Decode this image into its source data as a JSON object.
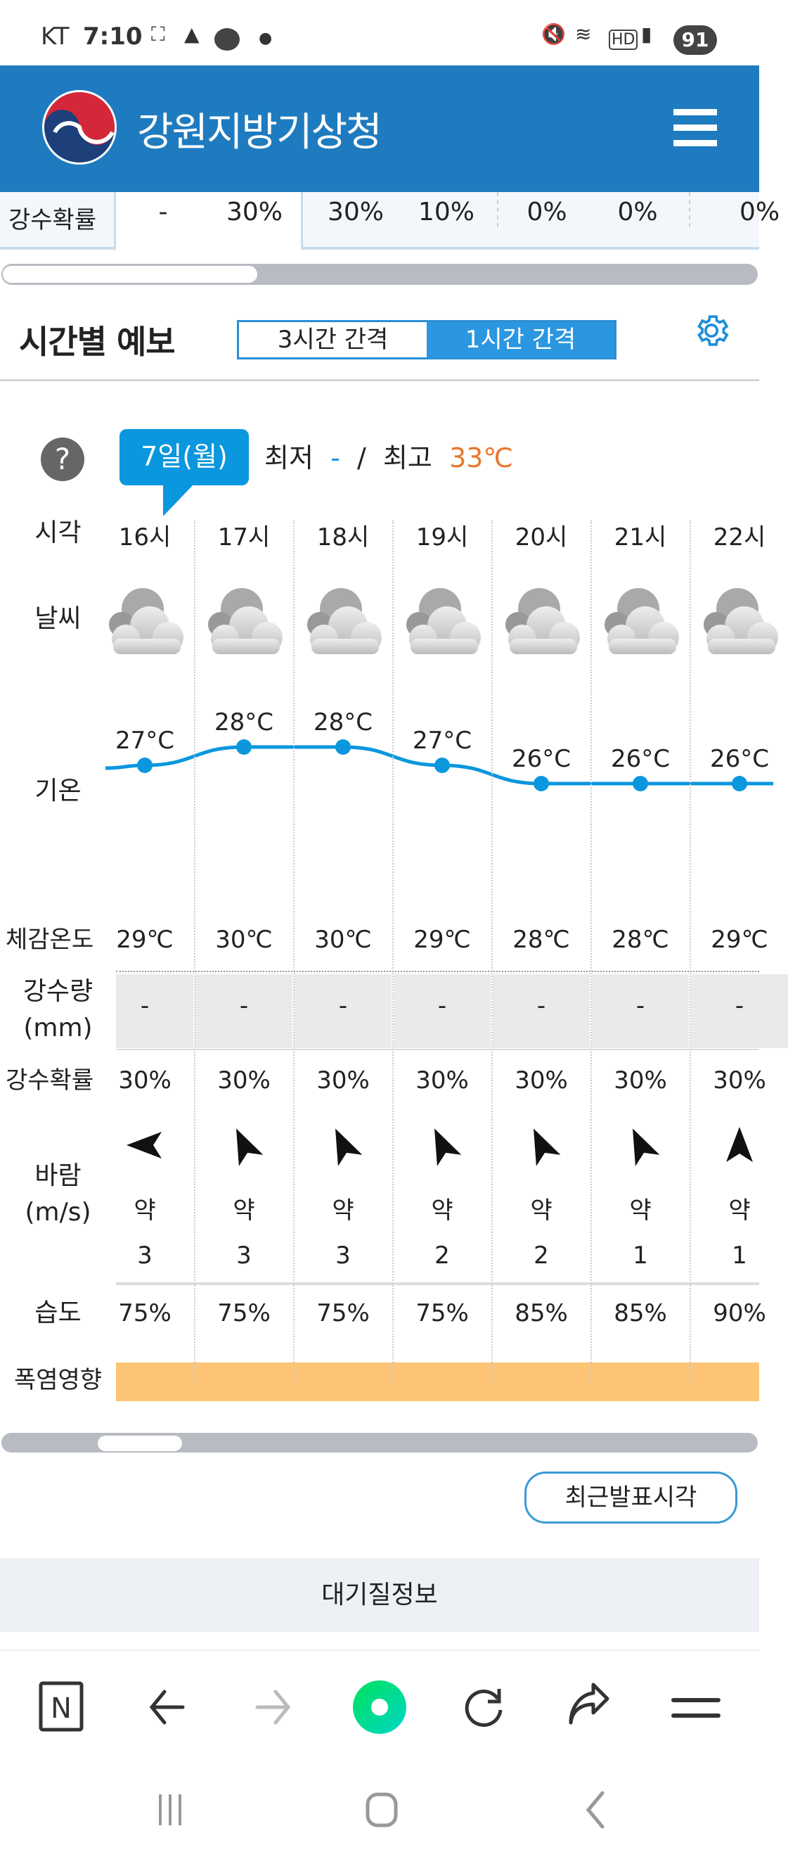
{
  "status_bar": {
    "carrier": "KT",
    "time": "7:10",
    "battery": "91"
  },
  "header": {
    "title": "강원지방기상청",
    "menu_icon": "hamburger-icon"
  },
  "top_table": {
    "label": "강수확률",
    "values": [
      "-",
      "30%",
      "30%",
      "10%",
      "0%",
      "0%",
      "0%"
    ]
  },
  "hourly": {
    "title": "시간별 예보",
    "toggle": {
      "options": [
        "3시간 간격",
        "1시간 간격"
      ],
      "selected": "1시간 간격"
    },
    "help": "?",
    "date": "7일(월)",
    "min_label": "최저",
    "min_value": "-",
    "separator": "/",
    "max_label": "최고",
    "max_value": "33℃",
    "labels": {
      "time": "시각",
      "weather": "날씨",
      "temp": "기온",
      "feels": "체감온도",
      "rain_amount": "강수량",
      "rain_unit": "(mm)",
      "rain_prob": "강수확률",
      "wind": "바람",
      "wind_unit": "(m/s)",
      "humidity": "습도",
      "heat": "폭염영향"
    },
    "columns": [
      {
        "time": "16시",
        "weather": "cloudy",
        "temp": 27,
        "temp_label": "27°C",
        "feels": "29℃",
        "rain": "-",
        "prob": "30%",
        "wind_dir_deg": 270,
        "wind_strength": "약",
        "wind_speed": "3",
        "humidity": "75%"
      },
      {
        "time": "17시",
        "weather": "cloudy",
        "temp": 28,
        "temp_label": "28°C",
        "feels": "30℃",
        "rain": "-",
        "prob": "30%",
        "wind_dir_deg": 335,
        "wind_strength": "약",
        "wind_speed": "3",
        "humidity": "75%"
      },
      {
        "time": "18시",
        "weather": "cloudy",
        "temp": 28,
        "temp_label": "28°C",
        "feels": "30℃",
        "rain": "-",
        "prob": "30%",
        "wind_dir_deg": 335,
        "wind_strength": "약",
        "wind_speed": "3",
        "humidity": "75%"
      },
      {
        "time": "19시",
        "weather": "cloudy",
        "temp": 27,
        "temp_label": "27°C",
        "feels": "29℃",
        "rain": "-",
        "prob": "30%",
        "wind_dir_deg": 335,
        "wind_strength": "약",
        "wind_speed": "2",
        "humidity": "75%"
      },
      {
        "time": "20시",
        "weather": "cloudy",
        "temp": 26,
        "temp_label": "26°C",
        "feels": "28℃",
        "rain": "-",
        "prob": "30%",
        "wind_dir_deg": 335,
        "wind_strength": "약",
        "wind_speed": "2",
        "humidity": "85%"
      },
      {
        "time": "21시",
        "weather": "cloudy",
        "temp": 26,
        "temp_label": "26°C",
        "feels": "28℃",
        "rain": "-",
        "prob": "30%",
        "wind_dir_deg": 335,
        "wind_strength": "약",
        "wind_speed": "1",
        "humidity": "85%"
      },
      {
        "time": "22시",
        "weather": "cloudy",
        "temp": 26,
        "temp_label": "26°C",
        "feels": "29℃",
        "rain": "-",
        "prob": "30%",
        "wind_dir_deg": 0,
        "wind_strength": "약",
        "wind_speed": "1",
        "humidity": "90%"
      }
    ],
    "heat_color": "#fcc474",
    "recent_button": "최근발표시각"
  },
  "air_quality": "대기질정보",
  "colors": {
    "header": "#1f7bbf",
    "accent": "#0a97dd",
    "max_temp": "#e8762d",
    "line": "#0a97dd"
  },
  "browser_toolbar": [
    "naver-n-icon",
    "back-arrow-icon",
    "forward-arrow-icon",
    "home-green-icon",
    "refresh-icon",
    "share-icon",
    "menu-icon"
  ],
  "nav_bar": [
    "recent-apps-icon",
    "home-icon",
    "back-icon"
  ]
}
